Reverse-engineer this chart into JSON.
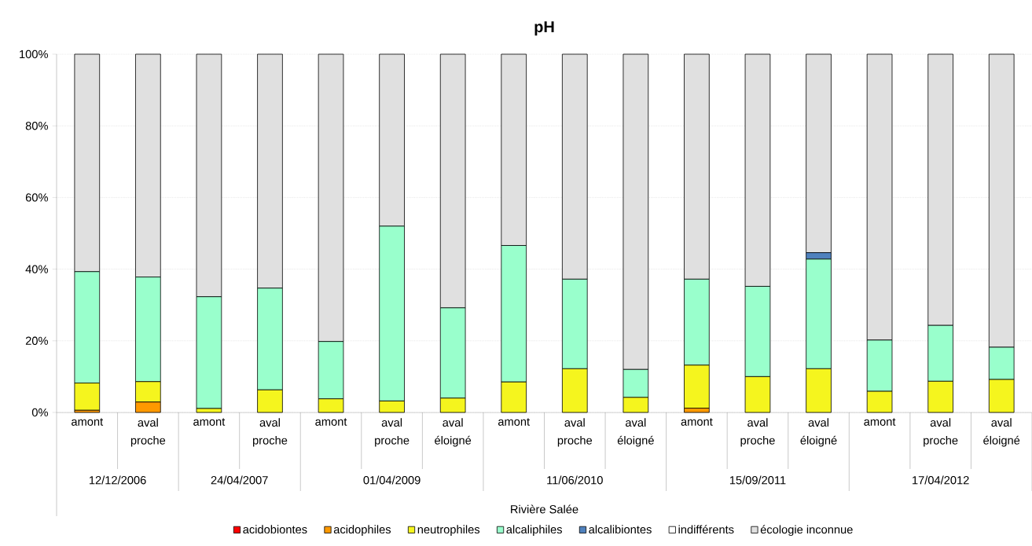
{
  "chart_data": {
    "type": "bar",
    "title": "pH",
    "stacked": true,
    "grid": "y",
    "legend": "bottom",
    "categories": [
      "amont",
      "aval proche",
      "amont",
      "aval proche",
      "amont",
      "aval proche",
      "aval éloigné",
      "amont",
      "aval proche",
      "aval éloigné",
      "amont",
      "aval proche",
      "aval éloigné",
      "amont",
      "aval proche",
      "aval éloigné"
    ],
    "annotations": [
      "12/12/2006",
      "24/04/2007",
      "01/04/2009",
      "11/06/2010",
      "15/09/2011",
      "17/04/2012",
      "Rivière Salée"
    ],
    "ylim": [
      0,
      100
    ],
    "yticks": [
      {
        "value": 0,
        "label": "0%"
      },
      {
        "value": 20,
        "label": "20%"
      },
      {
        "value": 40,
        "label": "40%"
      },
      {
        "value": 60,
        "label": "60%"
      },
      {
        "value": 80,
        "label": "80%"
      },
      {
        "value": 100,
        "label": "100%"
      }
    ],
    "series": [
      {
        "name": "acidobiontes",
        "color": "#ff0000",
        "values": [
          0,
          0,
          0,
          0,
          0,
          0,
          0,
          0,
          0,
          0,
          0,
          0,
          0,
          0,
          0,
          0
        ]
      },
      {
        "name": "acidophiles",
        "color": "#ff9900",
        "values": [
          0.6,
          2.9,
          0,
          0,
          0,
          0,
          0,
          0,
          0,
          0,
          1.2,
          0,
          0,
          0,
          0,
          0
        ]
      },
      {
        "name": "neutrophiles",
        "color": "#f5f51e",
        "values": [
          7.6,
          5.7,
          1.1,
          6.3,
          3.8,
          3.2,
          4.0,
          8.5,
          12.2,
          4.2,
          12.0,
          10.0,
          12.2,
          5.9,
          8.7,
          9.2
        ]
      },
      {
        "name": "alcaliphiles",
        "color": "#99ffcc",
        "values": [
          31.1,
          29.2,
          31.2,
          28.4,
          16.0,
          48.8,
          25.2,
          38.1,
          25.0,
          7.8,
          24.0,
          25.2,
          30.6,
          14.3,
          15.6,
          9.0
        ]
      },
      {
        "name": "alcalibiontes",
        "color": "#4f81bd",
        "values": [
          0,
          0,
          0,
          0,
          0,
          0,
          0,
          0,
          0,
          0,
          0,
          0,
          1.8,
          0,
          0,
          0
        ]
      },
      {
        "name": "indifférents",
        "color": "#ffffff",
        "values": [
          0,
          0,
          0,
          0,
          0,
          0,
          0,
          0,
          0,
          0,
          0,
          0,
          0,
          0,
          0,
          0
        ]
      },
      {
        "name": "écologie inconnue",
        "color": "#e0e0e0",
        "values": [
          60.7,
          62.2,
          67.7,
          65.3,
          80.2,
          48.0,
          70.8,
          53.4,
          62.8,
          88.0,
          62.8,
          64.8,
          55.4,
          79.8,
          75.7,
          81.8
        ]
      }
    ]
  }
}
